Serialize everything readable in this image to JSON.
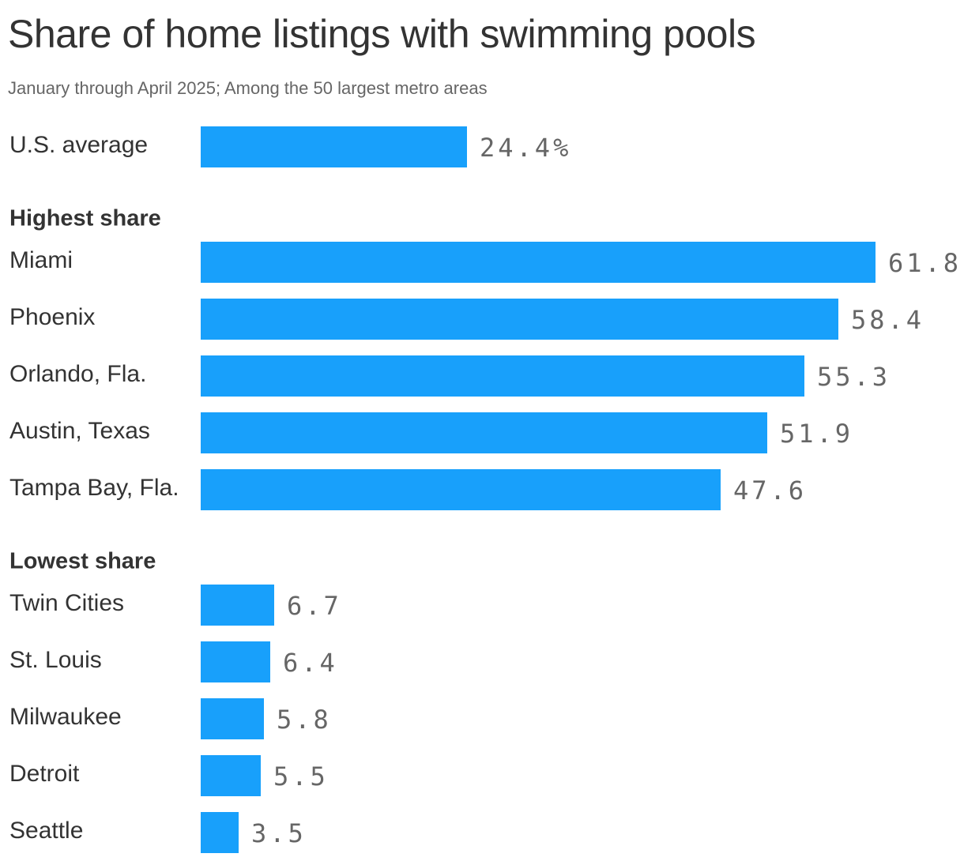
{
  "chart_data": {
    "type": "bar",
    "orientation": "horizontal",
    "title": "Share of home listings with swimming pools",
    "subtitle": "January through April 2025; Among the 50 largest metro areas",
    "bar_color": "#18a0fb",
    "xlim": [
      0,
      61.8
    ],
    "groups": [
      {
        "label": "",
        "items": [
          {
            "category": "U.S. average",
            "value": 24.4,
            "value_label": "24.4%"
          }
        ]
      },
      {
        "label": "Highest share",
        "items": [
          {
            "category": "Miami",
            "value": 61.8,
            "value_label": "61.8"
          },
          {
            "category": "Phoenix",
            "value": 58.4,
            "value_label": "58.4"
          },
          {
            "category": "Orlando, Fla.",
            "value": 55.3,
            "value_label": "55.3"
          },
          {
            "category": "Austin, Texas",
            "value": 51.9,
            "value_label": "51.9"
          },
          {
            "category": "Tampa Bay, Fla.",
            "value": 47.6,
            "value_label": "47.6"
          }
        ]
      },
      {
        "label": "Lowest share",
        "items": [
          {
            "category": "Twin Cities",
            "value": 6.7,
            "value_label": "6.7"
          },
          {
            "category": "St. Louis",
            "value": 6.4,
            "value_label": "6.4"
          },
          {
            "category": "Milwaukee",
            "value": 5.8,
            "value_label": "5.8"
          },
          {
            "category": "Detroit",
            "value": 5.5,
            "value_label": "5.5"
          },
          {
            "category": "Seattle",
            "value": 3.5,
            "value_label": "3.5"
          }
        ]
      }
    ]
  }
}
